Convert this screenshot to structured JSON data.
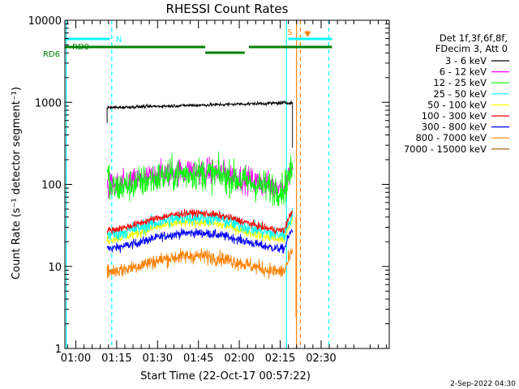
{
  "chart_data": {
    "type": "line",
    "title": "RHESSI Count Rates",
    "xlabel": "Start Time (22-Oct-17 00:57:22)",
    "ylabel": "Count Rate (s⁻¹ detector segment⁻¹)",
    "yscale": "log",
    "ylim": [
      1,
      10000
    ],
    "xlim_minutes": [
      -4,
      115
    ],
    "x_ticks": [
      {
        "minutes": 0,
        "label": "01:00"
      },
      {
        "minutes": 15,
        "label": "01:15"
      },
      {
        "minutes": 30,
        "label": "01:30"
      },
      {
        "minutes": 45,
        "label": "01:45"
      },
      {
        "minutes": 60,
        "label": "02:00"
      },
      {
        "minutes": 75,
        "label": "02:15"
      },
      {
        "minutes": 90,
        "label": "02:30"
      }
    ],
    "y_ticks": [
      {
        "value": 1,
        "label": "1"
      },
      {
        "value": 10,
        "label": "10"
      },
      {
        "value": 100,
        "label": "100"
      },
      {
        "value": 1000,
        "label": "1000"
      },
      {
        "value": 10000,
        "label": "10000"
      }
    ],
    "legend": {
      "header": [
        "Det 1f,3f,6f,8f,",
        "FDecim 3, Att 0"
      ],
      "placement": "right"
    },
    "data_start_minutes": 11.5,
    "data_end_minutes": 79.5,
    "series": [
      {
        "name": "3 - 6 keV",
        "color": "#000000",
        "base": 860,
        "amp": 0.0,
        "trend": 0.15,
        "noise": 0.02,
        "dip": 0.0
      },
      {
        "name": "6 - 12 keV",
        "color": "#ff00ff",
        "base": 120,
        "amp": 0.22,
        "trend": 0.0,
        "noise": 0.16,
        "dip": 0.3
      },
      {
        "name": "12 - 25 keV",
        "color": "#00ff00",
        "base": 112,
        "amp": 0.22,
        "trend": 0.0,
        "noise": 0.2,
        "dip": 0.35
      },
      {
        "name": "25 - 50 keV",
        "color": "#00ffff",
        "base": 32,
        "amp": 0.24,
        "trend": 0.0,
        "noise": 0.09,
        "dip": 0.3
      },
      {
        "name": "50 - 100 keV",
        "color": "#ffff00",
        "base": 28,
        "amp": 0.24,
        "trend": 0.0,
        "noise": 0.06,
        "dip": 0.3
      },
      {
        "name": "100 - 300 keV",
        "color": "#ff0000",
        "base": 36,
        "amp": 0.24,
        "trend": 0.0,
        "noise": 0.045,
        "dip": 0.3
      },
      {
        "name": "300 - 800 keV",
        "color": "#0000ff",
        "base": 21,
        "amp": 0.22,
        "trend": 0.0,
        "noise": 0.055,
        "dip": 0.3
      },
      {
        "name": "800 - 7000 keV",
        "color": "#ff8000",
        "base": 11,
        "amp": 0.22,
        "trend": 0.0,
        "noise": 0.09,
        "dip": 0.3
      },
      {
        "name": "7000 - 15000 keV",
        "color": "#a05a00",
        "base": 0,
        "amp": 0,
        "trend": 0,
        "noise": 0,
        "dip": 0
      }
    ],
    "flags": [
      {
        "label": "N",
        "color": "#00ffff",
        "segments": [
          [
            -4,
            12.5
          ]
        ]
      },
      {
        "label": "S",
        "color": "#ff8000",
        "segments": [
          [
            84,
            86
          ]
        ]
      },
      {
        "label": "",
        "color": "#00ffff",
        "segments": [
          [
            78,
            94
          ]
        ]
      },
      {
        "label": "RD6",
        "color": "#008000",
        "segments": [
          [
            -4,
            47.5
          ],
          [
            63.5,
            94
          ]
        ],
        "low_segments": [
          [
            47.5,
            62
          ]
        ]
      },
      {
        "label": "RD0",
        "color": "#008000",
        "segments": []
      }
    ],
    "vlines": [
      {
        "minutes": -3.5,
        "color": "#00ffff",
        "style": "solid"
      },
      {
        "minutes": 13.2,
        "color": "#00ffff",
        "style": "dashed"
      },
      {
        "minutes": 77.3,
        "color": "#00ffff",
        "style": "solid"
      },
      {
        "minutes": 81.0,
        "color": "#ff8000",
        "style": "solid"
      },
      {
        "minutes": 82.4,
        "color": "#ff8000",
        "style": "dashed"
      },
      {
        "minutes": 92.8,
        "color": "#00ffff",
        "style": "dashed"
      }
    ]
  },
  "footer": {
    "date": "2-Sep-2022 04:30"
  }
}
